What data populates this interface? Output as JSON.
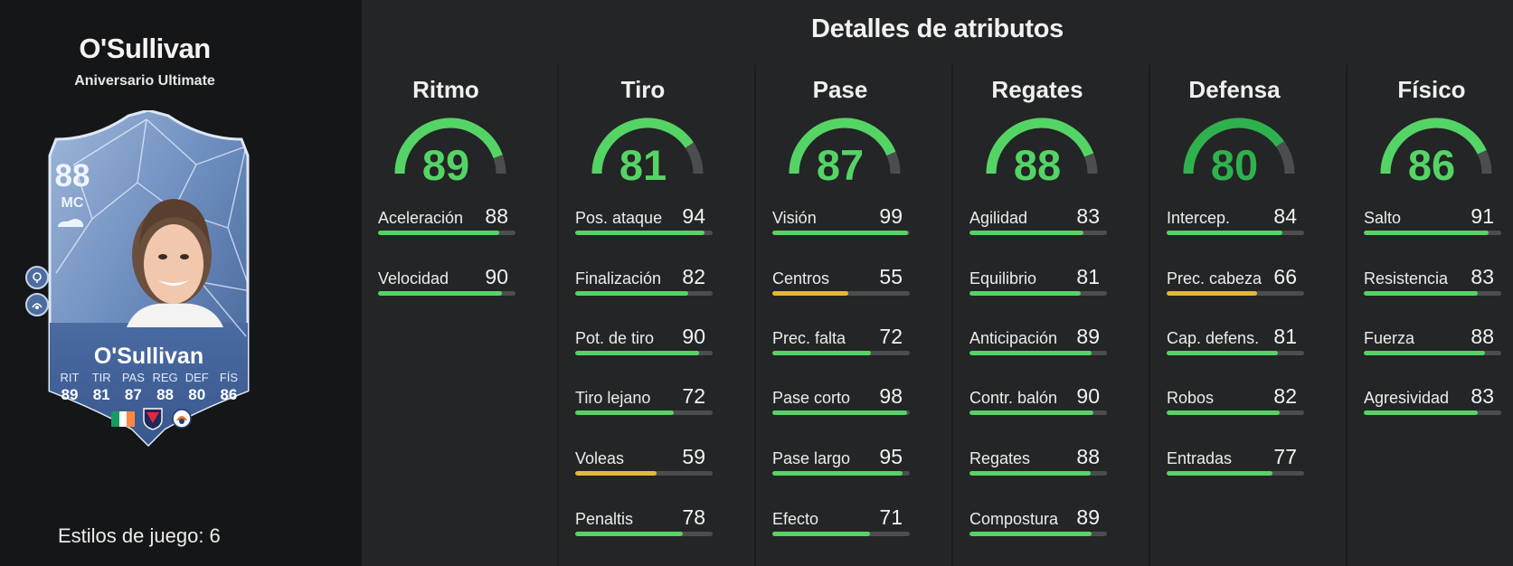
{
  "title": "Detalles de atributos",
  "player": {
    "name": "O'Sullivan",
    "subtitle": "Aniversario Ultimate",
    "card": {
      "rating": "88",
      "position": "MC",
      "name": "O'Sullivan",
      "stats": [
        {
          "label": "RIT",
          "value": "89"
        },
        {
          "label": "TIR",
          "value": "81"
        },
        {
          "label": "PAS",
          "value": "87"
        },
        {
          "label": "REG",
          "value": "88"
        },
        {
          "label": "DEF",
          "value": "80"
        },
        {
          "label": "FÍS",
          "value": "86"
        }
      ]
    },
    "playstyles_label": "Estilos de juego: 6"
  },
  "colors": {
    "high": "#55d466",
    "mid": "#e6b63c",
    "gauge_dark": "#2fb14d",
    "track": "#4b4d4f"
  },
  "categories": [
    {
      "name": "Ritmo",
      "value": "89",
      "attrs": [
        {
          "label": "Aceleración",
          "value": "88"
        },
        {
          "label": "Velocidad",
          "value": "90"
        }
      ]
    },
    {
      "name": "Tiro",
      "value": "81",
      "attrs": [
        {
          "label": "Pos. ataque",
          "value": "94"
        },
        {
          "label": "Finalización",
          "value": "82"
        },
        {
          "label": "Pot. de tiro",
          "value": "90"
        },
        {
          "label": "Tiro lejano",
          "value": "72"
        },
        {
          "label": "Voleas",
          "value": "59"
        },
        {
          "label": "Penaltis",
          "value": "78"
        }
      ]
    },
    {
      "name": "Pase",
      "value": "87",
      "attrs": [
        {
          "label": "Visión",
          "value": "99"
        },
        {
          "label": "Centros",
          "value": "55"
        },
        {
          "label": "Prec. falta",
          "value": "72"
        },
        {
          "label": "Pase corto",
          "value": "98"
        },
        {
          "label": "Pase largo",
          "value": "95"
        },
        {
          "label": "Efecto",
          "value": "71"
        }
      ]
    },
    {
      "name": "Regates",
      "value": "88",
      "attrs": [
        {
          "label": "Agilidad",
          "value": "83"
        },
        {
          "label": "Equilibrio",
          "value": "81"
        },
        {
          "label": "Anticipación",
          "value": "89"
        },
        {
          "label": "Contr. balón",
          "value": "90"
        },
        {
          "label": "Regates",
          "value": "88"
        },
        {
          "label": "Compostura",
          "value": "89"
        }
      ]
    },
    {
      "name": "Defensa",
      "value": "80",
      "attrs": [
        {
          "label": "Intercep.",
          "value": "84"
        },
        {
          "label": "Prec. cabeza",
          "value": "66"
        },
        {
          "label": "Cap. defens.",
          "value": "81"
        },
        {
          "label": "Robos",
          "value": "82"
        },
        {
          "label": "Entradas",
          "value": "77"
        }
      ]
    },
    {
      "name": "Físico",
      "value": "86",
      "attrs": [
        {
          "label": "Salto",
          "value": "91"
        },
        {
          "label": "Resistencia",
          "value": "83"
        },
        {
          "label": "Fuerza",
          "value": "88"
        },
        {
          "label": "Agresividad",
          "value": "83"
        }
      ]
    }
  ]
}
